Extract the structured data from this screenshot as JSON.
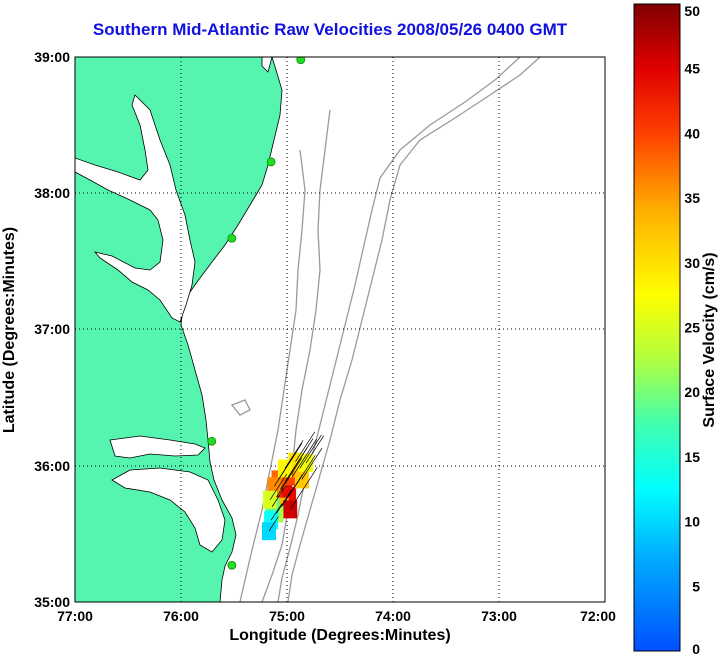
{
  "title": "Southern Mid-Atlantic Raw Velocities 2008/05/26 0400 GMT",
  "xlabel": "Longitude (Degrees:Minutes)",
  "ylabel": "Latitude (Degrees:Minutes)",
  "colorbar_label": "Surface Velocity (cm/s)",
  "x_ticks": [
    "77:00",
    "76:00",
    "75:00",
    "74:00",
    "73:00",
    "72:00"
  ],
  "y_ticks": [
    "39:00",
    "38:00",
    "37:00",
    "36:00",
    "35:00"
  ],
  "colorbar_ticks": [
    "50",
    "45",
    "40",
    "35",
    "30",
    "25",
    "20",
    "15",
    "10",
    "5",
    "0"
  ],
  "colors": {
    "land": "#55f5b0",
    "title": "#1010e0",
    "bathymetry": "#9a9a9a",
    "station": "#22dd22"
  },
  "chart_data": {
    "type": "map",
    "xlim": [
      -77,
      -72
    ],
    "ylim": [
      35,
      39
    ],
    "grid": true,
    "colorbar": {
      "range": [
        0,
        50
      ],
      "units": "cm/s",
      "colormap": "jet"
    },
    "stations": [
      {
        "lon": -74.87,
        "lat": 38.98
      },
      {
        "lon": -75.15,
        "lat": 38.23
      },
      {
        "lon": -75.52,
        "lat": 37.67
      },
      {
        "lon": -75.71,
        "lat": 36.18
      },
      {
        "lon": -75.52,
        "lat": 35.27
      }
    ],
    "velocity_cells": [
      {
        "lon": -75.06,
        "lat": 35.83,
        "speed": 45
      },
      {
        "lon": -75.02,
        "lat": 35.88,
        "speed": 48
      },
      {
        "lon": -75.1,
        "lat": 35.77,
        "speed": 42
      },
      {
        "lon": -74.98,
        "lat": 35.78,
        "speed": 44
      },
      {
        "lon": -74.95,
        "lat": 35.92,
        "speed": 40
      },
      {
        "lon": -74.88,
        "lat": 35.98,
        "speed": 35
      },
      {
        "lon": -74.86,
        "lat": 35.9,
        "speed": 32
      },
      {
        "lon": -74.92,
        "lat": 36.03,
        "speed": 30
      },
      {
        "lon": -75.08,
        "lat": 35.9,
        "speed": 38
      },
      {
        "lon": -75.12,
        "lat": 35.85,
        "speed": 36
      },
      {
        "lon": -75.05,
        "lat": 35.7,
        "speed": 33
      },
      {
        "lon": -74.97,
        "lat": 35.68,
        "speed": 46
      },
      {
        "lon": -75.1,
        "lat": 35.65,
        "speed": 22
      },
      {
        "lon": -75.14,
        "lat": 35.7,
        "speed": 18
      },
      {
        "lon": -75.15,
        "lat": 35.6,
        "speed": 13
      },
      {
        "lon": -75.17,
        "lat": 35.52,
        "speed": 10
      },
      {
        "lon": -75.16,
        "lat": 35.75,
        "speed": 25
      },
      {
        "lon": -75.02,
        "lat": 35.98,
        "speed": 28
      },
      {
        "lon": -74.82,
        "lat": 36.02,
        "speed": 27
      }
    ]
  }
}
